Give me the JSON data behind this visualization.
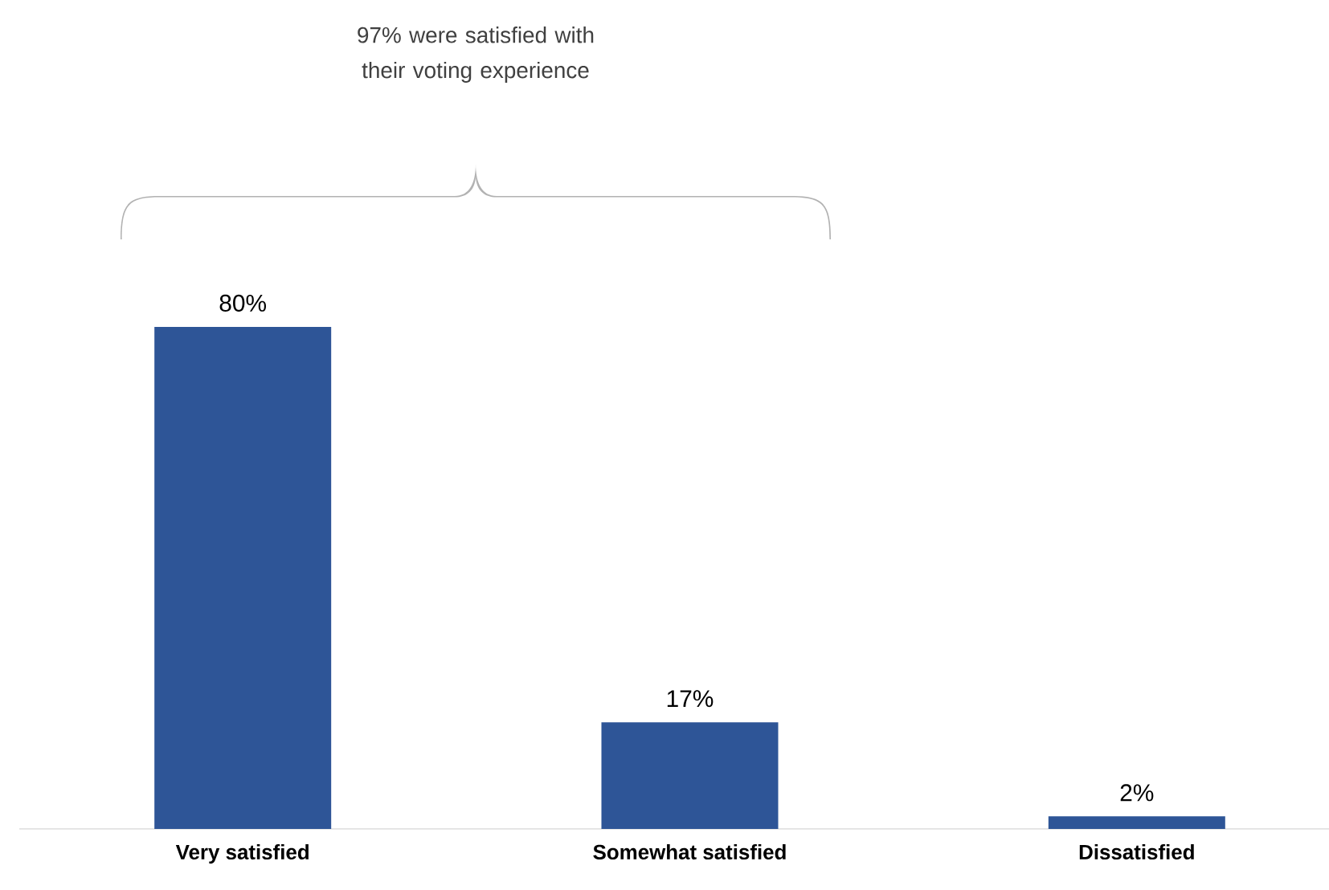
{
  "chart_data": {
    "type": "bar",
    "categories": [
      "Very satisfied",
      "Somewhat satisfied",
      "Dissatisfied"
    ],
    "values": [
      80,
      17,
      2
    ],
    "value_labels": [
      "80%",
      "17%",
      "2%"
    ],
    "color": "#2e5597",
    "annotations": [
      "97% were satisfied with their voting experience"
    ]
  }
}
